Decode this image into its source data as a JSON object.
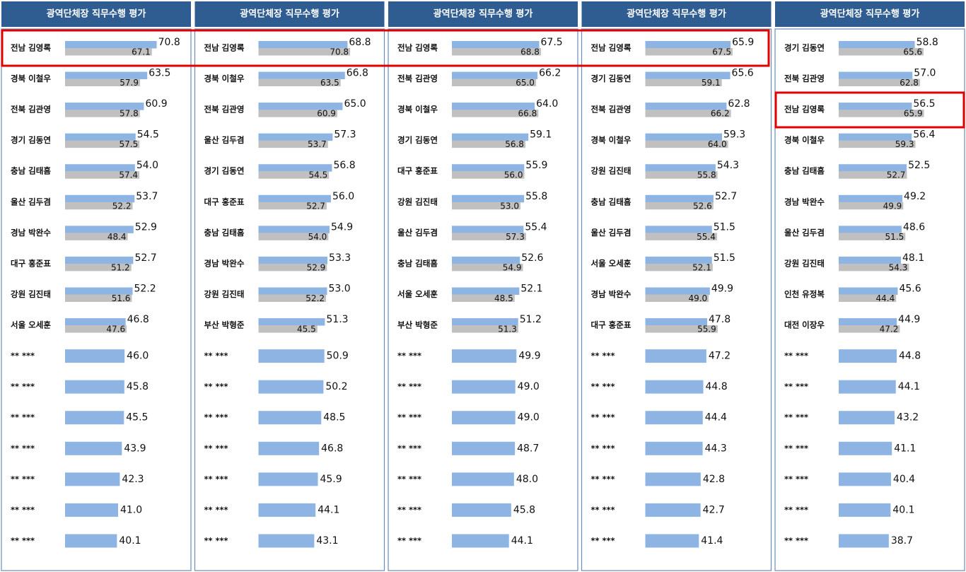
{
  "chart_data": [
    {
      "type": "bar",
      "title": "광역단체장 직무수행 평가",
      "categories": [
        "전남 김영록",
        "경북 이철우",
        "전북 김관영",
        "경기 김동연",
        "충남 김태흠",
        "울산 김두겸",
        "경남 박완수",
        "대구 홍준표",
        "강원 김진태",
        "서울 오세훈",
        "** ***",
        "** ***",
        "** ***",
        "** ***",
        "** ***",
        "** ***",
        "** ***"
      ],
      "series": [
        {
          "color": "#8db4e2",
          "values": [
            70.8,
            63.5,
            60.9,
            54.5,
            54.0,
            53.7,
            52.9,
            52.7,
            52.2,
            46.8,
            46.0,
            45.8,
            45.5,
            43.9,
            42.3,
            41.0,
            40.1
          ],
          "value_labels": [
            "70.8",
            "63.5",
            "60.9",
            "54.5",
            "54.0",
            "53.7",
            "52.9",
            "52.7",
            "52.2",
            "46.8",
            "46.0",
            "45.8",
            "45.5",
            "43.9",
            "42.3",
            "41.0",
            "40.1"
          ]
        },
        {
          "color": "#c0c0c0",
          "values": [
            67.1,
            57.9,
            57.8,
            57.5,
            57.4,
            52.2,
            48.4,
            51.2,
            51.6,
            47.6,
            null,
            null,
            null,
            null,
            null,
            null,
            null
          ],
          "value_labels": [
            "67.1",
            "57.9",
            "57.8",
            "57.5",
            "57.4",
            "52.2",
            "48.4",
            "51.2",
            "51.6",
            "47.6",
            null,
            null,
            null,
            null,
            null,
            null,
            null
          ]
        }
      ]
    },
    {
      "type": "bar",
      "title": "광역단체장 직무수행 평가",
      "categories": [
        "전남 김영록",
        "경북 이철우",
        "전북 김관영",
        "울산 김두겸",
        "경기 김동연",
        "대구 홍준표",
        "충남 김태흠",
        "경남 박완수",
        "강원 김진태",
        "부산 박형준",
        "** ***",
        "** ***",
        "** ***",
        "** ***",
        "** ***",
        "** ***",
        "** ***"
      ],
      "series": [
        {
          "color": "#8db4e2",
          "values": [
            68.8,
            66.8,
            65.0,
            57.3,
            56.8,
            56.0,
            54.9,
            53.3,
            53.0,
            51.3,
            50.9,
            50.2,
            48.5,
            46.8,
            45.9,
            44.1,
            43.1
          ],
          "value_labels": [
            "68.8",
            "66.8",
            "65.0",
            "57.3",
            "56.8",
            "56.0",
            "54.9",
            "53.3",
            "53.0",
            "51.3",
            "50.9",
            "50.2",
            "48.5",
            "46.8",
            "45.9",
            "44.1",
            "43.1"
          ]
        },
        {
          "color": "#c0c0c0",
          "values": [
            70.8,
            63.5,
            60.9,
            53.7,
            54.5,
            52.7,
            54.0,
            52.9,
            52.2,
            45.5,
            null,
            null,
            null,
            null,
            null,
            null,
            null
          ],
          "value_labels": [
            "70.8",
            "63.5",
            "60.9",
            "53.7",
            "54.5",
            "52.7",
            "54.0",
            "52.9",
            "52.2",
            "45.5",
            null,
            null,
            null,
            null,
            null,
            null,
            null
          ]
        }
      ]
    },
    {
      "type": "bar",
      "title": "광역단체장 직무수행 평가",
      "categories": [
        "전남 김영록",
        "전북 김관영",
        "경북 이철우",
        "경기 김동연",
        "대구 홍준표",
        "강원 김진태",
        "울산 김두겸",
        "충남 김태흠",
        "서울 오세훈",
        "부산 박형준",
        "** ***",
        "** ***",
        "** ***",
        "** ***",
        "** ***",
        "** ***",
        "** ***"
      ],
      "series": [
        {
          "color": "#8db4e2",
          "values": [
            67.5,
            66.2,
            64.0,
            59.1,
            55.9,
            55.8,
            55.4,
            52.6,
            52.1,
            51.2,
            49.9,
            49.0,
            49.0,
            48.7,
            48.0,
            45.8,
            44.1
          ],
          "value_labels": [
            "67.5",
            "66.2",
            "64.0",
            "59.1",
            "55.9",
            "55.8",
            "55.4",
            "52.6",
            "52.1",
            "51.2",
            "49.9",
            "49.0",
            "49.0",
            "48.7",
            "48.0",
            "45.8",
            "44.1"
          ]
        },
        {
          "color": "#c0c0c0",
          "values": [
            68.8,
            65.0,
            66.8,
            56.8,
            56.0,
            53.0,
            57.3,
            54.9,
            48.5,
            51.3,
            null,
            null,
            null,
            null,
            null,
            null,
            null
          ],
          "value_labels": [
            "68.8",
            "65.0",
            "66.8",
            "56.8",
            "56.0",
            "53.0",
            "57.3",
            "54.9",
            "48.5",
            "51.3",
            null,
            null,
            null,
            null,
            null,
            null,
            null
          ]
        }
      ]
    },
    {
      "type": "bar",
      "title": "광역단체장 직무수행 평가",
      "categories": [
        "전남 김영록",
        "경기 김동연",
        "전북 김관영",
        "경북 이철우",
        "강원 김진태",
        "충남 김태흠",
        "울산 김두겸",
        "서울 오세훈",
        "경남 박완수",
        "대구 홍준표",
        "** ***",
        "** ***",
        "** ***",
        "** ***",
        "** ***",
        "** ***",
        "** ***"
      ],
      "series": [
        {
          "color": "#8db4e2",
          "values": [
            65.9,
            65.6,
            62.8,
            59.3,
            54.3,
            52.7,
            51.5,
            51.5,
            49.9,
            47.8,
            47.2,
            44.8,
            44.4,
            44.3,
            42.8,
            42.7,
            41.4
          ],
          "value_labels": [
            "65.9",
            "65.6",
            "62.8",
            "59.3",
            "54.3",
            "52.7",
            "51.5",
            "51.5",
            "49.9",
            "47.8",
            "47.2",
            "44.8",
            "44.4",
            "44.3",
            "42.8",
            "42.7",
            "41.4"
          ]
        },
        {
          "color": "#c0c0c0",
          "values": [
            67.5,
            59.1,
            66.2,
            64.0,
            55.8,
            52.6,
            55.4,
            52.1,
            49.0,
            55.9,
            null,
            null,
            null,
            null,
            null,
            null,
            null
          ],
          "value_labels": [
            "67.5",
            "59.1",
            "66.2",
            "64.0",
            "55.8",
            "52.6",
            "55.4",
            "52.1",
            "49.0",
            "55.9",
            null,
            null,
            null,
            null,
            null,
            null,
            null
          ]
        }
      ]
    },
    {
      "type": "bar",
      "title": "광역단체장 직무수행 평가",
      "categories": [
        "경기 김동연",
        "전북 김관영",
        "전남 김영록",
        "경북 이철우",
        "충남 김태흠",
        "경남 박완수",
        "울산 김두겸",
        "강원 김진태",
        "인천 유정복",
        "대전 이장우",
        "** ***",
        "** ***",
        "** ***",
        "** ***",
        "** ***",
        "** ***",
        "** ***"
      ],
      "series": [
        {
          "color": "#8db4e2",
          "values": [
            58.8,
            57.0,
            56.5,
            56.4,
            52.5,
            49.2,
            48.6,
            48.1,
            45.6,
            44.9,
            44.8,
            44.1,
            43.2,
            41.1,
            40.4,
            40.1,
            38.7
          ],
          "value_labels": [
            "58.8",
            "57.0",
            "56.5",
            "56.4",
            "52.5",
            "49.2",
            "48.6",
            "48.1",
            "45.6",
            "44.9",
            "44.8",
            "44.1",
            "43.2",
            "41.1",
            "40.4",
            "40.1",
            "38.7"
          ]
        },
        {
          "color": "#c0c0c0",
          "values": [
            65.6,
            62.8,
            65.9,
            59.3,
            52.7,
            49.9,
            51.5,
            54.3,
            44.4,
            47.2,
            null,
            null,
            null,
            null,
            null,
            null,
            null
          ],
          "value_labels": [
            "65.6",
            "62.8",
            "65.9",
            "59.3",
            "52.7",
            "49.9",
            "51.5",
            "54.3",
            "44.4",
            "47.2",
            null,
            null,
            null,
            null,
            null,
            null,
            null
          ]
        }
      ]
    }
  ]
}
